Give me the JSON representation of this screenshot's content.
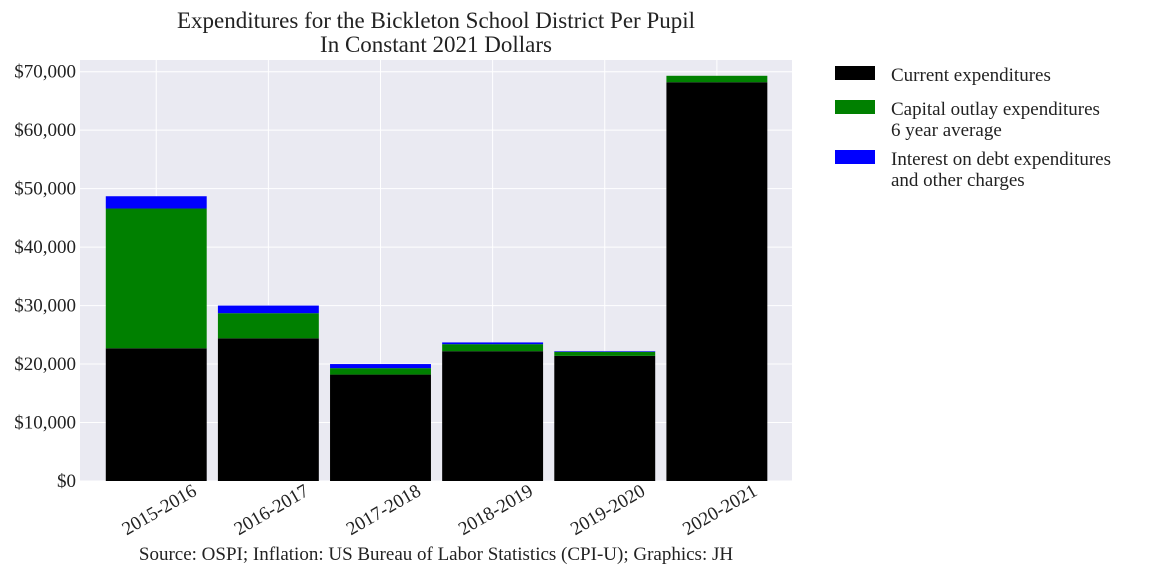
{
  "chart_data": {
    "type": "bar",
    "stacked": true,
    "title": [
      "Expenditures for the Bickleton School District Per Pupil",
      "In Constant 2021 Dollars"
    ],
    "categories": [
      "2015-2016",
      "2016-2017",
      "2017-2018",
      "2018-2019",
      "2019-2020",
      "2020-2021"
    ],
    "series": [
      {
        "name": [
          "Current expenditures"
        ],
        "color": "#000000",
        "values": [
          22700,
          24400,
          18200,
          22200,
          21400,
          68200
        ]
      },
      {
        "name": [
          "Capital outlay expenditures",
          "6 year average"
        ],
        "color": "#008000",
        "values": [
          23900,
          4300,
          1100,
          1200,
          700,
          1100
        ]
      },
      {
        "name": [
          "Interest on debt expenditures",
          "and other charges"
        ],
        "color": "#0000ff",
        "values": [
          2100,
          1300,
          700,
          300,
          100,
          0
        ]
      }
    ],
    "ylim": [
      0,
      72000
    ],
    "yticks": [
      0,
      10000,
      20000,
      30000,
      40000,
      50000,
      60000,
      70000
    ],
    "ytick_labels": [
      "$0",
      "$10,000",
      "$20,000",
      "$30,000",
      "$40,000",
      "$50,000",
      "$60,000",
      "$70,000"
    ],
    "xlabel": "",
    "ylabel": "",
    "grid": true,
    "legend_position": "right, outside plot",
    "plot_background": "#eaeaf2",
    "source": "Source: OSPI; Inflation: US Bureau of Labor Statistics (CPI-U); Graphics: JH"
  }
}
